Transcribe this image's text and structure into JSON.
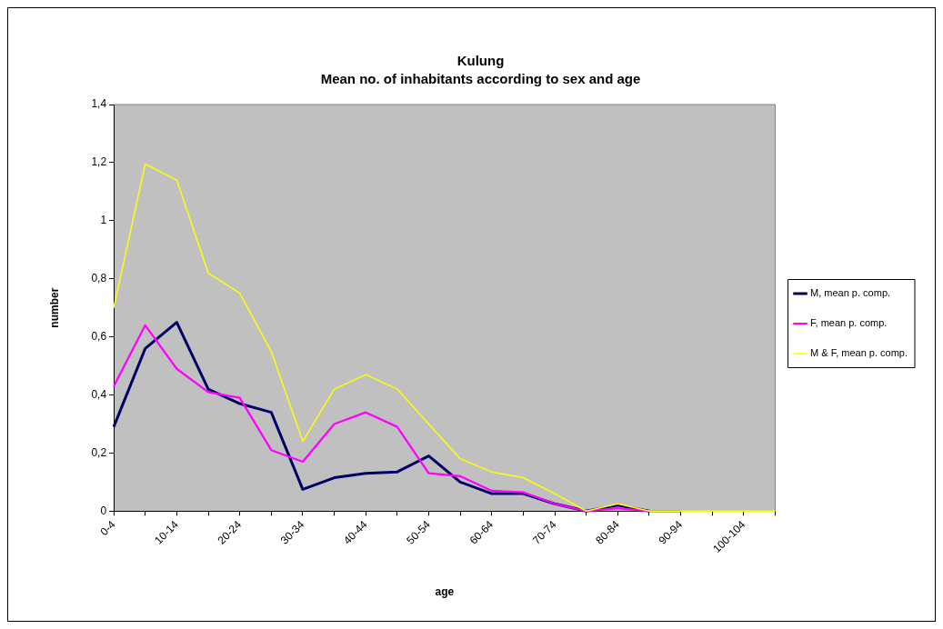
{
  "chart_data": {
    "type": "line",
    "title": "Kulung",
    "subtitle": "Mean no. of inhabitants according to sex and age",
    "xlabel": "age",
    "ylabel": "number",
    "categories": [
      "0-4",
      null,
      "10-14",
      null,
      "20-24",
      null,
      "30-34",
      null,
      "40-44",
      null,
      "50-54",
      null,
      "60-64",
      null,
      "70-74",
      null,
      "80-84",
      null,
      "90-94",
      null,
      "100-104",
      null
    ],
    "series": [
      {
        "name": "M, mean p. comp.",
        "color": "#000066",
        "values": [
          0.29,
          0.56,
          0.65,
          0.42,
          0.37,
          0.34,
          0.075,
          0.115,
          0.13,
          0.135,
          0.19,
          0.1,
          0.06,
          0.06,
          0.025,
          0,
          0.02,
          0,
          null,
          null,
          null,
          null
        ]
      },
      {
        "name": "F, mean p. comp.",
        "color": "#ff00ff",
        "values": [
          0.43,
          0.64,
          0.49,
          0.41,
          0.39,
          0.21,
          0.17,
          0.3,
          0.34,
          0.29,
          0.13,
          0.12,
          0.07,
          0.065,
          0.025,
          0,
          0.01,
          0,
          0,
          null,
          null,
          null
        ]
      },
      {
        "name": "M & F, mean p. comp.",
        "color": "#ffff00",
        "values": [
          0.7,
          1.195,
          1.14,
          0.82,
          0.75,
          0.55,
          0.24,
          0.42,
          0.47,
          0.42,
          0.3,
          0.18,
          0.135,
          0.115,
          0.06,
          0,
          0.025,
          0,
          0,
          0,
          0,
          0
        ]
      }
    ],
    "ylim": [
      0,
      1.4
    ],
    "yticks": [
      0,
      {
        "value": 0.2,
        "label": "0,2"
      },
      {
        "value": 0.4,
        "label": "0,4"
      },
      {
        "value": 0.6,
        "label": "0,6"
      },
      {
        "value": 0.8,
        "label": "0,8"
      },
      1,
      {
        "value": 1.2,
        "label": "1,2"
      },
      {
        "value": 1.4,
        "label": "1,4"
      }
    ],
    "legend": "right",
    "marker": "none",
    "line_style": "solid",
    "grid": false
  }
}
